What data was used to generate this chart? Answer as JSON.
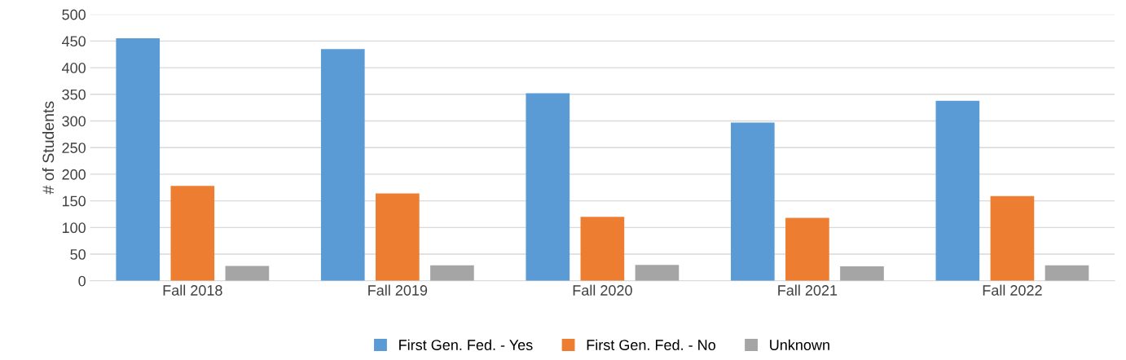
{
  "chart_data": {
    "type": "bar",
    "ylabel": "# of Students",
    "categories": [
      "Fall 2018",
      "Fall 2019",
      "Fall 2020",
      "Fall 2021",
      "Fall 2022"
    ],
    "series": [
      {
        "name": "First Gen. Fed. - Yes",
        "color": "#5b9bd5",
        "values": [
          455,
          435,
          352,
          297,
          338
        ]
      },
      {
        "name": "First Gen. Fed. - No",
        "color": "#ed7d31",
        "values": [
          178,
          164,
          120,
          118,
          159
        ]
      },
      {
        "name": "Unknown",
        "color": "#a5a5a5",
        "values": [
          28,
          29,
          30,
          27,
          29
        ]
      }
    ],
    "ylim": [
      0,
      500
    ],
    "yticks": [
      0,
      50,
      100,
      150,
      200,
      250,
      300,
      350,
      400,
      450,
      500
    ],
    "grid": "y",
    "legend": "bottom"
  }
}
